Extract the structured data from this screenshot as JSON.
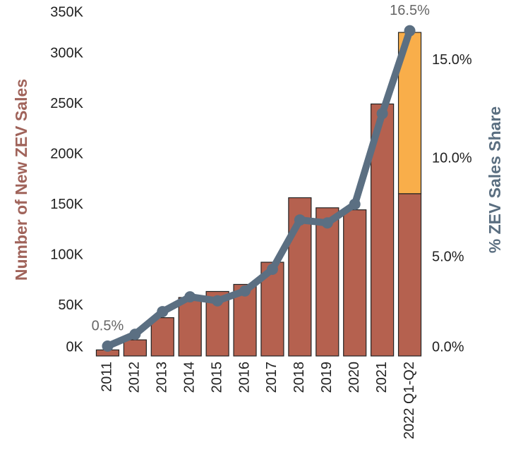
{
  "chart_data": {
    "type": "bar",
    "categories": [
      "2011",
      "2012",
      "2013",
      "2014",
      "2015",
      "2016",
      "2017",
      "2018",
      "2019",
      "2020",
      "2021",
      "2022 Q1-Q2"
    ],
    "series": [
      {
        "color": "#b5614f",
        "values": [
          6000,
          16000,
          38000,
          58000,
          64000,
          71000,
          93000,
          157000,
          147000,
          145000,
          250000,
          161000
        ]
      },
      {
        "color": "#f9ae4a",
        "values": [
          null,
          null,
          null,
          null,
          null,
          null,
          null,
          null,
          null,
          null,
          null,
          160000
        ]
      },
      {
        "type": "line",
        "axis": "y2",
        "color": "#5b6f82",
        "values": [
          0.5,
          1.1,
          2.25,
          3.0,
          2.8,
          3.3,
          4.4,
          6.9,
          6.75,
          7.7,
          12.3,
          16.5
        ],
        "value_labels": [
          "0.5%",
          null,
          null,
          null,
          null,
          null,
          null,
          null,
          null,
          null,
          null,
          "16.5%"
        ]
      }
    ],
    "ylabel": "Number of New ZEV Sales",
    "y2label": "% ZEV Sales Share",
    "ylim": [
      0,
      350000
    ],
    "yticks": [
      {
        "value": 0,
        "label": "0K"
      },
      {
        "value": 50000,
        "label": "50K"
      },
      {
        "value": 100000,
        "label": "100K"
      },
      {
        "value": 150000,
        "label": "150K"
      },
      {
        "value": 200000,
        "label": "200K"
      },
      {
        "value": 250000,
        "label": "250K"
      },
      {
        "value": 300000,
        "label": "300K"
      },
      {
        "value": 350000,
        "label": "350K"
      }
    ],
    "y2lim": [
      0,
      17.9
    ],
    "y2ticks": [
      {
        "value": 0,
        "label": "0.0%"
      },
      {
        "value": 5,
        "label": "5.0%"
      },
      {
        "value": 10,
        "label": "10.0%"
      },
      {
        "value": 15,
        "label": "15.0%"
      }
    ]
  }
}
